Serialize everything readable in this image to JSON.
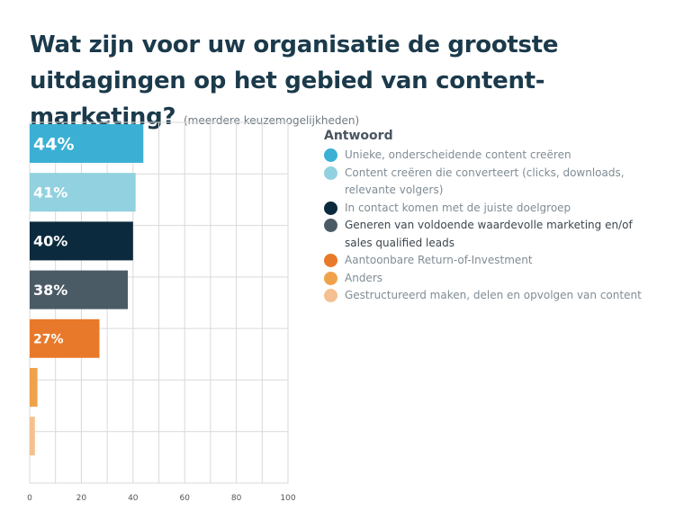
{
  "header": {
    "title": "Wat zijn voor uw organisatie de grootste uitdagingen op het gebied van content- marketing?",
    "subtitle": "(meerdere keuzemogelijkheden)"
  },
  "legend": {
    "title": "Antwoord",
    "items": [
      {
        "label": "Unieke, onderscheidende content creëren",
        "color": "#3bb0d4",
        "dark": false
      },
      {
        "label": "Content creëren die converteert (clicks, downloads, relevante volgers)",
        "color": "#92d1df",
        "dark": false
      },
      {
        "label": "In contact komen met de juiste doelgroep",
        "color": "#0b2a3d",
        "dark": false
      },
      {
        "label": "Generen van voldoende waardevolle marketing en/of sales qualified leads",
        "color": "#4b5b66",
        "dark": true
      },
      {
        "label": "Aantoonbare Return-of-Investment",
        "color": "#e9792a",
        "dark": false
      },
      {
        "label": "Anders",
        "color": "#f0a24b",
        "dark": false
      },
      {
        "label": "Gestructureerd maken, delen en opvolgen van content",
        "color": "#f4c08f",
        "dark": false
      }
    ]
  },
  "chart_data": {
    "type": "bar",
    "orientation": "horizontal",
    "title": "Wat zijn voor uw organisatie de grootste uitdagingen op het gebied van content- marketing?",
    "xlabel": "",
    "ylabel": "",
    "xlim": [
      0,
      100
    ],
    "xticks": [
      0,
      20,
      40,
      60,
      80,
      100
    ],
    "grid": true,
    "legend_position": "right",
    "categories": [
      "Unieke, onderscheidende content creëren",
      "Content creëren die converteert (clicks, downloads, relevante volgers)",
      "In contact komen met de juiste doelgroep",
      "Generen van voldoende waardevolle marketing en/of sales qualified leads",
      "Aantoonbare Return-of-Investment",
      "Anders",
      "Gestructureerd maken, delen en opvolgen van content"
    ],
    "values": [
      44,
      41,
      40,
      38,
      27,
      3,
      2
    ],
    "labels": [
      "44%",
      "41%",
      "40%",
      "38%",
      "27%",
      "",
      ""
    ],
    "colors": [
      "#3bb0d4",
      "#92d1df",
      "#0b2a3d",
      "#4b5b66",
      "#e9792a",
      "#f0a24b",
      "#f4c08f"
    ]
  }
}
